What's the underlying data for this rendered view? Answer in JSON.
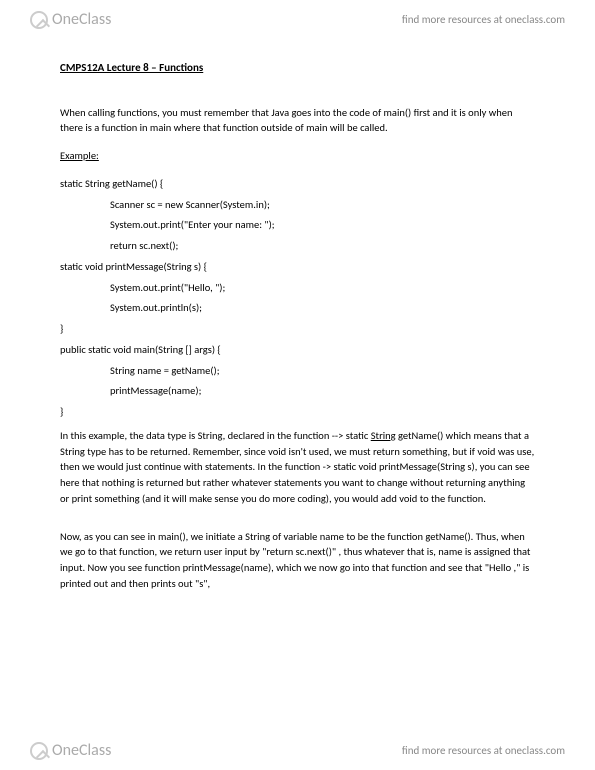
{
  "brand": {
    "name": "OneClass",
    "top_link": "find more resources at oneclass.com",
    "bottom_link": "find more resources at oneclass.com"
  },
  "doc": {
    "title": "CMPS12A Lecture 8 – Functions",
    "intro": "When calling functions, you must remember that Java goes into the code of main() first and it is only when there is a function in main where that function outside of main will be called.",
    "example_label": "Example:",
    "code": {
      "l1": "static String getName() {",
      "l2": "Scanner sc = new Scanner(System.in);",
      "l3": "System.out.print(\"Enter your name: \");",
      "l4": "return sc.next();",
      "l5": "static void printMessage(String s) {",
      "l6": "System.out.print(\"Hello, \");",
      "l7": "System.out.println(s);",
      "l8": "}",
      "l9": "public static void main(String [] args) {",
      "l10": "String name = getName();",
      "l11": "printMessage(name);",
      "l12": "}"
    },
    "para1a": "In this example, the data type is String, declared in the function --> static ",
    "para1b": "String",
    "para1c": " getName() which means that a String type has to be returned. Remember, since void isn't used, we must return something, but if void was use, then we would just continue with statements. In the function -> static void printMessage(String s), you can see here that nothing is returned but rather whatever statements you want to change without returning anything or print something (and it will make sense you do more coding), you would add void to the function.",
    "para2": "Now, as you can see in main(), we initiate a String of variable name to be the function getName(). Thus, when we go to that function, we return user input by \"return sc.next()\" , thus whatever that is, name is assigned that input. Now you see function printMessage(name), which we now go into that function and see that \"Hello ,\" is printed out and then prints out \"s\","
  }
}
